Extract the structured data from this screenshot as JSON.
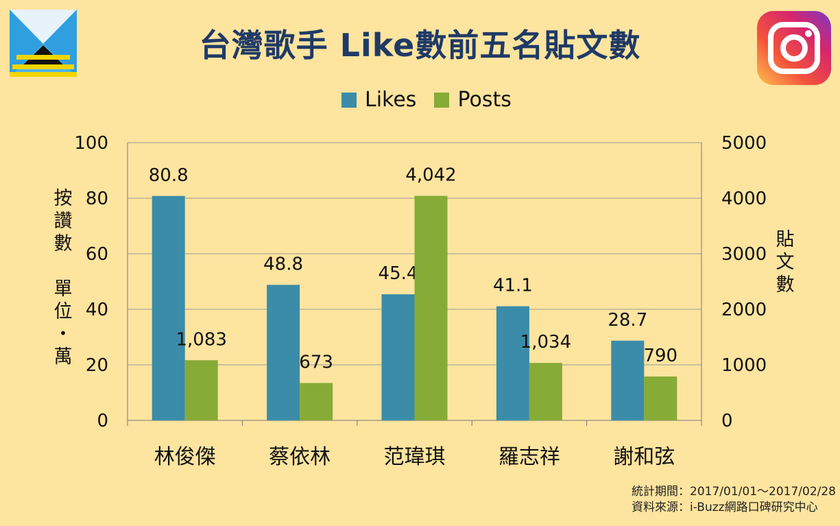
{
  "header": {
    "title": "台灣歌手 Like數前五名貼文數"
  },
  "chart_data": {
    "type": "bar",
    "categories": [
      "林俊傑",
      "蔡依林",
      "范瑋琪",
      "羅志祥",
      "謝和弦"
    ],
    "series": [
      {
        "name": "Likes",
        "axis": "left",
        "color": "#3b8ca8",
        "values": [
          80.8,
          48.8,
          45.4,
          41.1,
          28.7
        ],
        "labels": [
          "80.8",
          "48.8",
          "45.4",
          "41.1",
          "28.7"
        ]
      },
      {
        "name": "Posts",
        "axis": "right",
        "color": "#86ab37",
        "values": [
          1083,
          673,
          4042,
          1034,
          790
        ],
        "labels": [
          "1,083",
          "673",
          "4,042",
          "1,034",
          "790"
        ]
      }
    ],
    "ylabel_left": "按讚數 單位：萬",
    "ylabel_right": "貼文數",
    "ylim_left": [
      0,
      100
    ],
    "ylim_right": [
      0,
      5000
    ],
    "yticks_left": [
      "0",
      "20",
      "40",
      "60",
      "80",
      "100"
    ],
    "yticks_right": [
      "0",
      "1000",
      "2000",
      "3000",
      "4000",
      "5000"
    ],
    "grid": true,
    "legend_position": "top"
  },
  "footer": {
    "period": "統計期間：2017/01/01～2017/02/28",
    "source": "資料來源：i-Buzz網路口碑研究中心"
  },
  "colors": {
    "background": "#fde49f",
    "title": "#1f3a66"
  },
  "icons": {
    "brand_logo": "ibuzz-logo-icon",
    "instagram": "instagram-icon"
  }
}
